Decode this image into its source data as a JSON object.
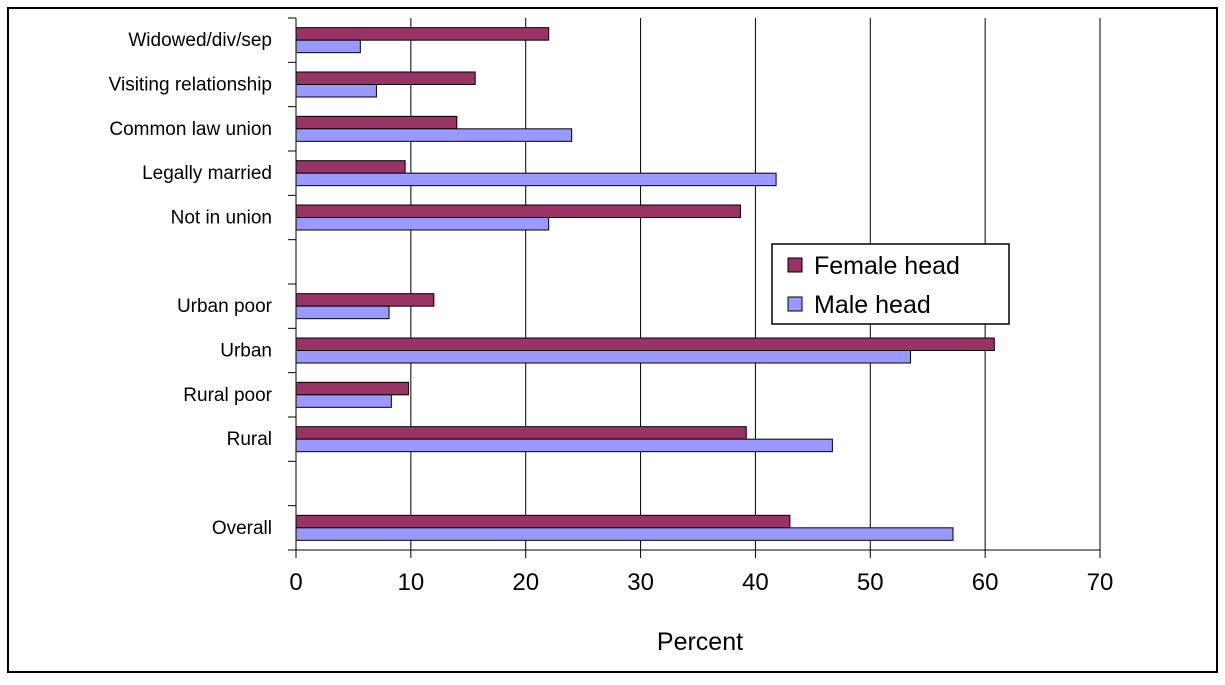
{
  "chart_data": {
    "type": "bar",
    "orientation": "horizontal",
    "categories": [
      "Widowed/div/sep",
      "Visiting relationship",
      "Common law union",
      "Legally married",
      "Not in union",
      "",
      "Urban poor",
      "Urban",
      "Rural poor",
      "Rural",
      "",
      "Overall"
    ],
    "series": [
      {
        "name": "Female head",
        "color": "#993366",
        "values": [
          22,
          15.6,
          14,
          9.5,
          38.7,
          null,
          12,
          60.8,
          9.8,
          39.2,
          null,
          43
        ]
      },
      {
        "name": "Male head",
        "color": "#9999ff",
        "values": [
          5.6,
          7,
          24,
          41.8,
          22,
          null,
          8.1,
          53.5,
          8.3,
          46.7,
          null,
          57.2
        ]
      }
    ],
    "title": "",
    "xlabel": "Percent",
    "ylabel": "",
    "xlim": [
      0,
      70
    ],
    "xticks": [
      "0",
      "10",
      "20",
      "30",
      "40",
      "50",
      "60",
      "70"
    ],
    "grid": true,
    "legend_position": "right"
  }
}
